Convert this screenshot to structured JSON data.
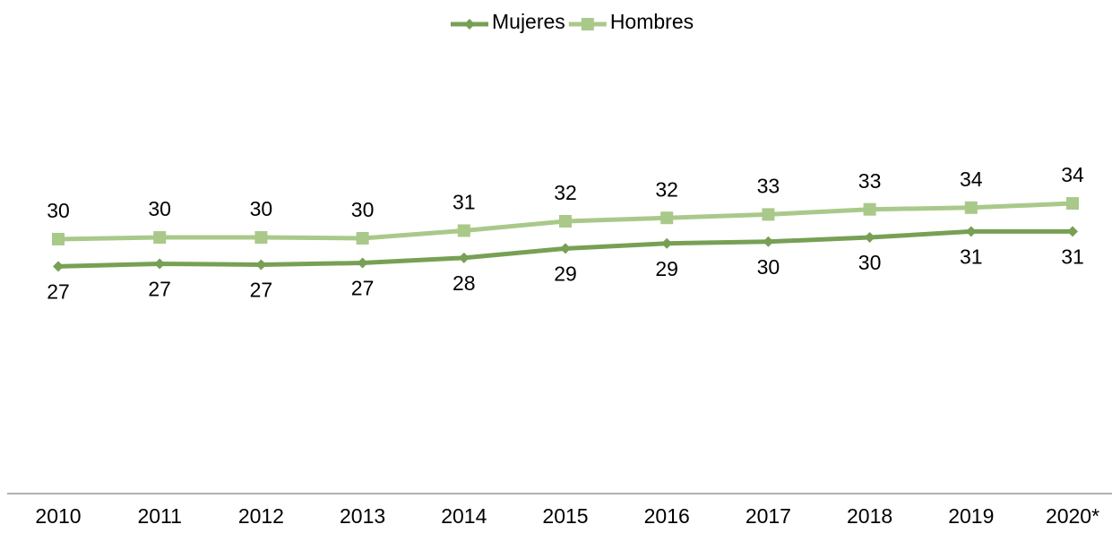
{
  "chart_data": {
    "type": "line",
    "categories": [
      "2010",
      "2011",
      "2012",
      "2013",
      "2014",
      "2015",
      "2016",
      "2017",
      "2018",
      "2019",
      "2020*"
    ],
    "series": [
      {
        "name": "Mujeres",
        "color": "#77a055",
        "marker": "diamond",
        "values": [
          26.7,
          27.0,
          26.9,
          27.1,
          27.7,
          28.8,
          29.4,
          29.6,
          30.1,
          30.8,
          30.8
        ],
        "value_labels": [
          "27",
          "27",
          "27",
          "27",
          "28",
          "29",
          "29",
          "30",
          "30",
          "31",
          "31"
        ]
      },
      {
        "name": "Hombres",
        "color": "#a9c98a",
        "marker": "square",
        "values": [
          29.9,
          30.1,
          30.1,
          30.0,
          30.9,
          32.0,
          32.4,
          32.8,
          33.4,
          33.6,
          34.1
        ],
        "value_labels": [
          "30",
          "30",
          "30",
          "30",
          "31",
          "32",
          "32",
          "33",
          "33",
          "34",
          "34"
        ]
      }
    ],
    "ylim": [
      0,
      58
    ],
    "legend": "top"
  }
}
